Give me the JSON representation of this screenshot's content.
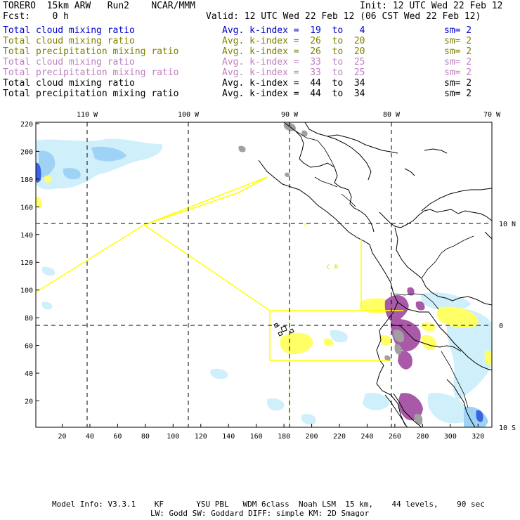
{
  "header": {
    "model": "TORERO  15km ARW   Run2    NCAR/MMM",
    "init": "Init: 12 UTC Wed 22 Feb 12",
    "fcst": "Fcst:    0 h",
    "valid": "Valid: 12 UTC Wed 22 Feb 12 (06 CST Wed 22 Feb 12)"
  },
  "legend": [
    {
      "field": "Total cloud mixing ratio",
      "kindex": "Avg. k-index =  19  to   4",
      "sm": "sm= 2",
      "color": "#0000cc"
    },
    {
      "field": "Total cloud mixing ratio",
      "kindex": "Avg. k-index =  26  to  20",
      "sm": "sm= 2",
      "color": "#808000"
    },
    {
      "field": "Total precipitation mixing ratio",
      "kindex": "Avg. k-index =  26  to  20",
      "sm": "sm= 2",
      "color": "#808000"
    },
    {
      "field": "Total cloud mixing ratio",
      "kindex": "Avg. k-index =  33  to  25",
      "sm": "sm= 2",
      "color": "#c080c0"
    },
    {
      "field": "Total precipitation mixing ratio",
      "kindex": "Avg. k-index =  33  to  25",
      "sm": "sm= 2",
      "color": "#c080c0"
    },
    {
      "field": "Total cloud mixing ratio",
      "kindex": "Avg. k-index =  44  to  34",
      "sm": "sm= 2",
      "color": "#000000"
    },
    {
      "field": "Total precipitation mixing ratio",
      "kindex": "Avg. k-index =  44  to  34",
      "sm": "sm= 2",
      "color": "#000000"
    }
  ],
  "map": {
    "bottom_ticks": [
      "20",
      "40",
      "60",
      "80",
      "100",
      "120",
      "140",
      "160",
      "180",
      "200",
      "220",
      "240",
      "260",
      "280",
      "300",
      "320"
    ],
    "left_ticks": [
      "20",
      "40",
      "60",
      "80",
      "100",
      "120",
      "140",
      "160",
      "180",
      "200",
      "220"
    ],
    "top_labels": [
      "110 W",
      "100 W",
      "90 W",
      "80 W",
      "70 W"
    ],
    "right_labels": [
      "10 N",
      "0",
      "10 S"
    ],
    "region_labels": [
      "C  R"
    ],
    "colors": {
      "light_blue": "#cfeffb",
      "mid_blue": "#9fd3f5",
      "dark_blue": "#3a63e0",
      "yellow": "#ffff66",
      "purple": "#a85aa8",
      "gray": "#a0a0a0",
      "outline": "#ffff00"
    }
  },
  "footer": {
    "line1": "Model Info: V3.3.1    KF       YSU PBL   WDM 6class  Noah LSM  15 km,    44 levels,    90 sec",
    "line2": "LW: Godd SW: Goddard DIFF: simple KM: 2D Smagor"
  }
}
